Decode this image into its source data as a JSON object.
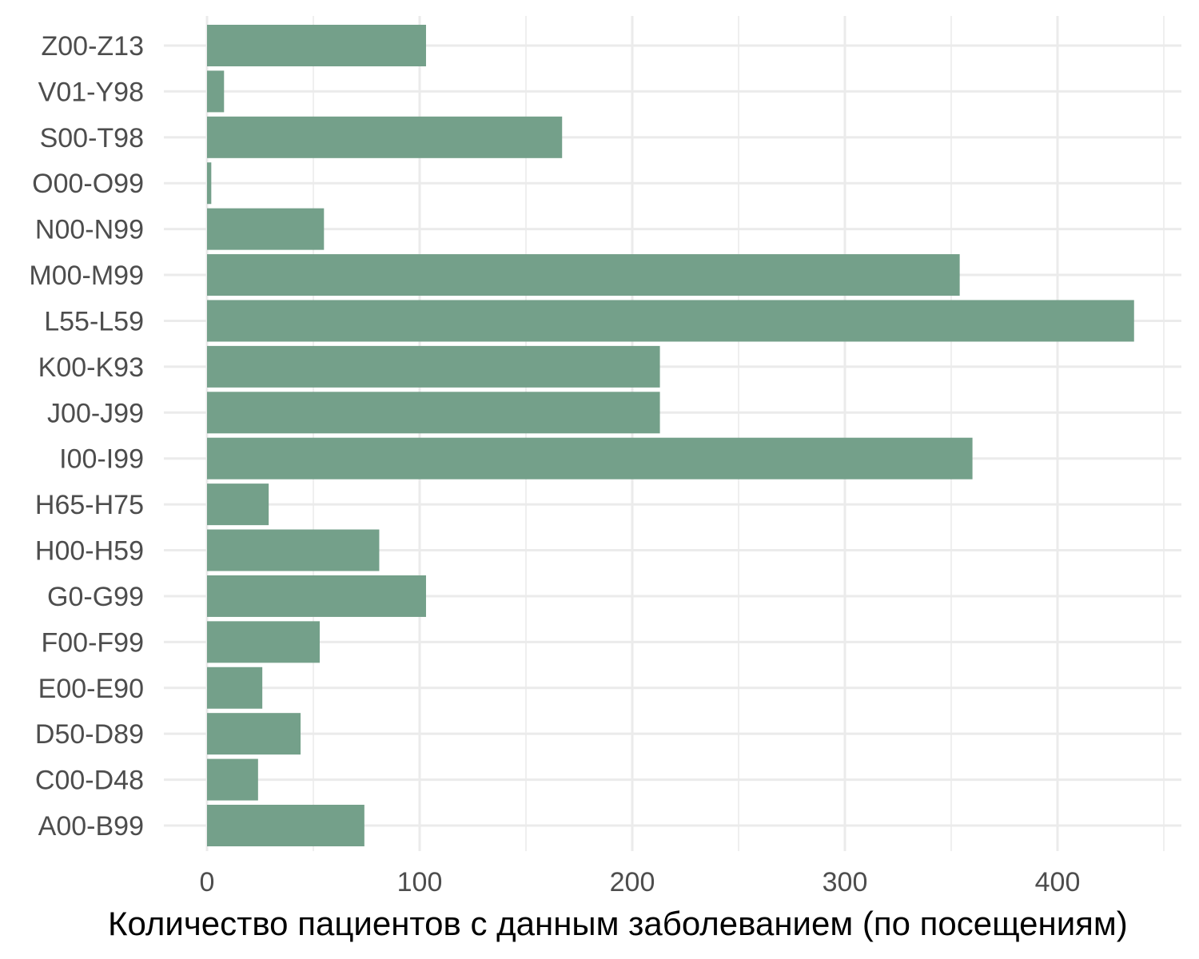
{
  "chart_data": {
    "type": "bar",
    "orientation": "horizontal",
    "categories": [
      "A00-B99",
      "C00-D48",
      "D50-D89",
      "E00-E90",
      "F00-F99",
      "G0-G99",
      "H00-H59",
      "H65-H75",
      "I00-I99",
      "J00-J99",
      "K00-K93",
      "L55-L59",
      "M00-M99",
      "N00-N99",
      "O00-O99",
      "S00-T98",
      "V01-Y98",
      "Z00-Z13"
    ],
    "values": [
      74,
      24,
      44,
      26,
      53,
      103,
      81,
      29,
      360,
      213,
      213,
      436,
      354,
      55,
      2,
      167,
      8,
      103
    ],
    "xlabel": "Количество пациентов с данным заболеванием (по посещениям)",
    "ylabel": "",
    "xlim": [
      0,
      460
    ],
    "x_ticks": [
      0,
      100,
      200,
      300,
      400
    ],
    "grid": true,
    "bar_color": "#74a08a",
    "grid_color": "#ebebeb"
  }
}
